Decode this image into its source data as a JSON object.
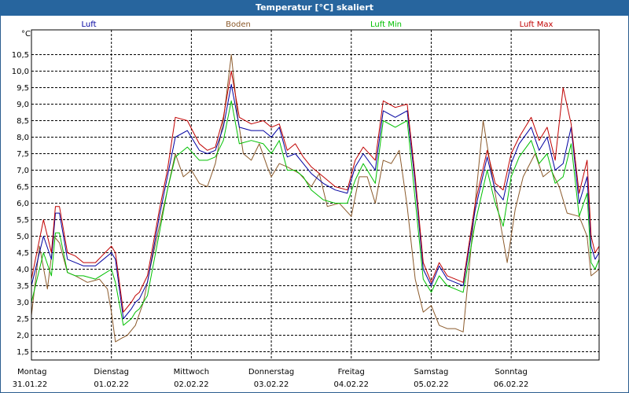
{
  "window": {
    "title": "Temperatur [°C] skaliert"
  },
  "chart_data": {
    "type": "line",
    "title": "Temperatur [°C] skaliert",
    "ylabel": "°C",
    "ylim": [
      1.25,
      11.25
    ],
    "y_ticks": [
      "1,5",
      "2,0",
      "2,5",
      "3,0",
      "3,5",
      "4,0",
      "4,5",
      "5,0",
      "5,5",
      "6,0",
      "6,5",
      "7,0",
      "7,5",
      "8,0",
      "8,5",
      "9,0",
      "9,5",
      "10,0",
      "10,5"
    ],
    "x_days": [
      {
        "day": "Montag",
        "date": "31.01.22"
      },
      {
        "day": "Dienstag",
        "date": "01.02.22"
      },
      {
        "day": "Mittwoch",
        "date": "02.02.22"
      },
      {
        "day": "Donnerstag",
        "date": "03.02.22"
      },
      {
        "day": "Freitag",
        "date": "04.02.22"
      },
      {
        "day": "Samstag",
        "date": "05.02.22"
      },
      {
        "day": "Sonntag",
        "date": "06.02.22"
      }
    ],
    "x_range_days": [
      0,
      7.1
    ],
    "grid": true,
    "series": [
      {
        "name": "Luft",
        "color": "#0000a0",
        "x": [
          0,
          0.15,
          0.25,
          0.3,
          0.35,
          0.45,
          0.55,
          0.65,
          0.8,
          1.0,
          1.05,
          1.15,
          1.25,
          1.3,
          1.35,
          1.45,
          1.6,
          1.7,
          1.8,
          1.95,
          2.1,
          2.2,
          2.3,
          2.4,
          2.5,
          2.6,
          2.75,
          2.9,
          3.0,
          3.1,
          3.2,
          3.3,
          3.4,
          3.5,
          3.65,
          3.8,
          3.95,
          4.05,
          4.15,
          4.3,
          4.4,
          4.55,
          4.7,
          4.8,
          4.9,
          5.0,
          5.1,
          5.2,
          5.3,
          5.4,
          5.55,
          5.7,
          5.8,
          5.9,
          6.0,
          6.1,
          6.25,
          6.35,
          6.45,
          6.55,
          6.65,
          6.75,
          6.85,
          6.95,
          7.0,
          7.05,
          7.1
        ],
        "y": [
          3.5,
          5.0,
          4.3,
          5.7,
          5.7,
          4.3,
          4.2,
          4.1,
          4.1,
          4.5,
          4.3,
          2.5,
          2.8,
          3.0,
          3.1,
          3.6,
          5.6,
          6.8,
          8.0,
          8.2,
          7.6,
          7.5,
          7.6,
          8.3,
          9.6,
          8.3,
          8.2,
          8.2,
          8.0,
          8.3,
          7.4,
          7.5,
          7.2,
          6.9,
          6.6,
          6.4,
          6.3,
          7.1,
          7.5,
          7.0,
          8.8,
          8.6,
          8.8,
          6.6,
          4.0,
          3.5,
          4.1,
          3.7,
          3.6,
          3.5,
          5.8,
          7.4,
          6.4,
          6.1,
          7.2,
          7.8,
          8.3,
          7.6,
          8.0,
          7.0,
          7.2,
          8.3,
          6.0,
          6.8,
          4.7,
          4.3,
          4.5
        ]
      },
      {
        "name": "Boden",
        "color": "#8b5a2b",
        "x": [
          0,
          0.1,
          0.2,
          0.28,
          0.35,
          0.45,
          0.55,
          0.7,
          0.85,
          0.95,
          1.0,
          1.05,
          1.12,
          1.2,
          1.3,
          1.4,
          1.5,
          1.6,
          1.7,
          1.8,
          1.9,
          2.0,
          2.1,
          2.2,
          2.3,
          2.4,
          2.5,
          2.58,
          2.65,
          2.75,
          2.85,
          2.95,
          3.0,
          3.1,
          3.2,
          3.35,
          3.5,
          3.6,
          3.7,
          3.85,
          4.0,
          4.1,
          4.2,
          4.3,
          4.4,
          4.5,
          4.6,
          4.7,
          4.8,
          4.9,
          5.0,
          5.1,
          5.2,
          5.3,
          5.4,
          5.55,
          5.65,
          5.75,
          5.85,
          5.95,
          6.05,
          6.15,
          6.3,
          6.4,
          6.5,
          6.6,
          6.7,
          6.85,
          6.95,
          7.0,
          7.05,
          7.1
        ],
        "y": [
          2.6,
          4.7,
          3.4,
          5.0,
          4.8,
          3.9,
          3.8,
          3.6,
          3.7,
          3.4,
          2.7,
          1.8,
          1.9,
          2.0,
          2.3,
          3.0,
          4.2,
          5.3,
          6.4,
          7.5,
          6.8,
          7.0,
          6.6,
          6.5,
          7.2,
          8.5,
          10.5,
          8.6,
          7.5,
          7.3,
          7.8,
          7.1,
          6.8,
          7.2,
          7.1,
          6.9,
          6.5,
          6.9,
          5.9,
          6.0,
          5.6,
          6.8,
          6.8,
          6.0,
          7.3,
          7.2,
          7.6,
          5.9,
          3.7,
          2.7,
          2.9,
          2.3,
          2.2,
          2.2,
          2.1,
          6.0,
          8.5,
          7.0,
          5.6,
          4.2,
          5.8,
          6.8,
          7.5,
          6.8,
          7.0,
          6.5,
          5.7,
          5.6,
          5.0,
          3.8,
          3.9,
          4.0
        ]
      },
      {
        "name": "Luft Min",
        "color": "#00c000",
        "x": [
          0,
          0.15,
          0.25,
          0.3,
          0.35,
          0.45,
          0.55,
          0.65,
          0.8,
          1.0,
          1.05,
          1.15,
          1.25,
          1.3,
          1.35,
          1.45,
          1.6,
          1.7,
          1.8,
          1.95,
          2.1,
          2.2,
          2.3,
          2.4,
          2.5,
          2.6,
          2.75,
          2.9,
          3.0,
          3.1,
          3.2,
          3.3,
          3.4,
          3.5,
          3.65,
          3.8,
          3.95,
          4.05,
          4.15,
          4.3,
          4.4,
          4.55,
          4.7,
          4.8,
          4.9,
          5.0,
          5.1,
          5.2,
          5.3,
          5.4,
          5.55,
          5.7,
          5.8,
          5.9,
          6.0,
          6.1,
          6.25,
          6.35,
          6.45,
          6.55,
          6.65,
          6.75,
          6.85,
          6.95,
          7.0,
          7.05,
          7.1
        ],
        "y": [
          3.0,
          4.5,
          3.8,
          5.1,
          5.1,
          3.9,
          3.8,
          3.8,
          3.7,
          4.0,
          3.6,
          2.3,
          2.5,
          2.7,
          2.8,
          3.2,
          5.1,
          6.4,
          7.4,
          7.7,
          7.3,
          7.3,
          7.4,
          7.9,
          9.1,
          7.8,
          7.9,
          7.8,
          7.5,
          7.9,
          7.0,
          7.0,
          6.8,
          6.4,
          6.1,
          6.0,
          6.0,
          6.7,
          7.2,
          6.6,
          8.5,
          8.3,
          8.5,
          6.1,
          3.7,
          3.3,
          3.8,
          3.5,
          3.4,
          3.3,
          5.4,
          7.0,
          6.0,
          5.3,
          6.8,
          7.4,
          7.9,
          7.2,
          7.5,
          6.6,
          6.8,
          7.8,
          5.6,
          6.3,
          4.2,
          4.0,
          4.3
        ]
      },
      {
        "name": "Luft Max",
        "color": "#c00000",
        "x": [
          0,
          0.15,
          0.25,
          0.3,
          0.35,
          0.45,
          0.55,
          0.65,
          0.8,
          1.0,
          1.05,
          1.15,
          1.25,
          1.3,
          1.35,
          1.45,
          1.6,
          1.7,
          1.8,
          1.95,
          2.1,
          2.2,
          2.3,
          2.4,
          2.5,
          2.6,
          2.75,
          2.9,
          3.0,
          3.1,
          3.2,
          3.3,
          3.4,
          3.5,
          3.65,
          3.8,
          3.95,
          4.05,
          4.15,
          4.3,
          4.4,
          4.55,
          4.7,
          4.8,
          4.9,
          5.0,
          5.1,
          5.2,
          5.3,
          5.4,
          5.55,
          5.7,
          5.8,
          5.9,
          6.0,
          6.1,
          6.25,
          6.35,
          6.45,
          6.55,
          6.65,
          6.75,
          6.85,
          6.95,
          7.0,
          7.05,
          7.1
        ],
        "y": [
          3.7,
          5.5,
          4.5,
          5.9,
          5.9,
          4.5,
          4.4,
          4.2,
          4.2,
          4.7,
          4.5,
          2.7,
          3.0,
          3.2,
          3.3,
          3.8,
          5.8,
          7.0,
          8.6,
          8.5,
          7.8,
          7.6,
          7.7,
          8.6,
          10.0,
          8.6,
          8.4,
          8.5,
          8.3,
          8.4,
          7.6,
          7.8,
          7.4,
          7.1,
          6.8,
          6.5,
          6.4,
          7.3,
          7.7,
          7.3,
          9.1,
          8.9,
          9.0,
          6.8,
          4.2,
          3.6,
          4.2,
          3.8,
          3.7,
          3.6,
          6.0,
          7.6,
          6.6,
          6.4,
          7.5,
          8.0,
          8.6,
          7.9,
          8.3,
          7.3,
          9.5,
          8.4,
          6.3,
          7.3,
          5.0,
          4.5,
          4.7
        ]
      }
    ]
  }
}
